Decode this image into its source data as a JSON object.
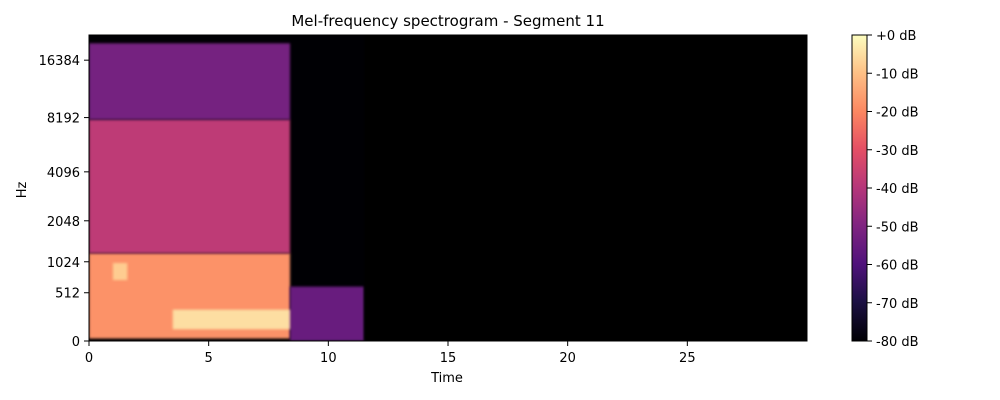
{
  "chart_data": {
    "type": "heatmap",
    "title": "Mel-frequency spectrogram - Segment 11",
    "xlabel": "Time",
    "ylabel": "Hz",
    "x_ticks": [
      0,
      5,
      10,
      15,
      20,
      25
    ],
    "xlim": [
      0,
      30
    ],
    "y_scale": "mel",
    "y_ticks": [
      0,
      512,
      1024,
      2048,
      4096,
      8192,
      16384
    ],
    "y_max_hz": 22050,
    "colormap": "magma",
    "colorbar": {
      "range": [
        -80,
        0
      ],
      "ticks": [
        0,
        -10,
        -20,
        -30,
        -40,
        -50,
        -60,
        -70,
        -80
      ],
      "tick_labels": [
        "+0 dB",
        "-10 dB",
        "-20 dB",
        "-30 dB",
        "-40 dB",
        "-50 dB",
        "-60 dB",
        "-70 dB",
        "-80 dB"
      ]
    },
    "energy_regions": [
      {
        "time": [
          0,
          8.4
        ],
        "hz": [
          20,
          1200
        ],
        "db": -18
      },
      {
        "time": [
          0,
          8.4
        ],
        "hz": [
          1200,
          8000
        ],
        "db": -38
      },
      {
        "time": [
          0,
          8.4
        ],
        "hz": [
          8000,
          20000
        ],
        "db": -52
      },
      {
        "time": [
          3.5,
          8.5
        ],
        "hz": [
          100,
          300
        ],
        "db": -5
      },
      {
        "time": [
          1.0,
          1.6
        ],
        "hz": [
          700,
          1000
        ],
        "db": -8
      },
      {
        "time": [
          8.4,
          11.5
        ],
        "hz": [
          0,
          600
        ],
        "db": -55
      },
      {
        "time": [
          11.5,
          30
        ],
        "hz": [
          0,
          22050
        ],
        "db": -80
      }
    ]
  },
  "colors": {
    "background": "#ffffff",
    "silence": "#000004"
  }
}
